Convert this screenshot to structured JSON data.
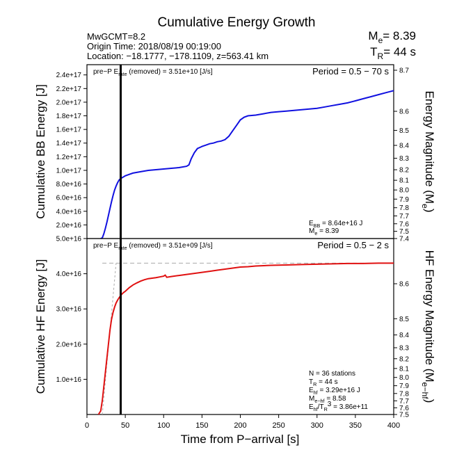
{
  "title": "Cumulative Energy Growth",
  "header": {
    "left_lines": [
      "MwGCMT=8.2",
      "Origin Time: 2018/08/19 00:19:00",
      "Location: −18.1777, −178.1109, z=563.41 km"
    ],
    "me_label": "M",
    "me_sub": "e",
    "me_value": "= 8.39",
    "tr_label": "T",
    "tr_sub": "R",
    "tr_value": "= 44 s"
  },
  "xlabel": "Time from P−arrival [s]",
  "x_ticks": [
    "0",
    "50",
    "100",
    "150",
    "200",
    "250",
    "300",
    "350",
    "400"
  ],
  "vline_x": 44,
  "colors": {
    "bb": "#1010e0",
    "hf": "#e01010",
    "ref": "#aaaaaa",
    "vline": "#000000"
  },
  "chart_data": [
    {
      "type": "line",
      "panel": "top",
      "xlim": [
        0,
        400
      ],
      "ylim": [
        0,
        2.55e+17
      ],
      "ylabel": "Cumulative BB Energy [J]",
      "y2label_main": "Energy Magnitude (M",
      "y2label_sub": "e",
      "y2label_end": ")",
      "y_ticks": [
        {
          "v": 2e+16,
          "label": "2.0e+16"
        },
        {
          "v": 4e+16,
          "label": "4.0e+16"
        },
        {
          "v": 6e+16,
          "label": "6.0e+16"
        },
        {
          "v": 8e+16,
          "label": "8.0e+16"
        },
        {
          "v": 1e+17,
          "label": "1.0e+17"
        },
        {
          "v": 1.2e+17,
          "label": "1.2e+17"
        },
        {
          "v": 1.4e+17,
          "label": "1.4e+17"
        },
        {
          "v": 1.6e+17,
          "label": "1.6e+17"
        },
        {
          "v": 1.8e+17,
          "label": "1.8e+17"
        },
        {
          "v": 2e+17,
          "label": "2.0e+17"
        },
        {
          "v": 2.2e+17,
          "label": "2.2e+17"
        },
        {
          "v": 2.4e+17,
          "label": "2.4e+17"
        }
      ],
      "right_ticks": [
        "8.7",
        "8.6",
        "8.5",
        "8.4",
        "8.3",
        "8.2",
        "8.1",
        "8.0",
        "7.9",
        "7.8",
        "7.7",
        "7.6",
        "7.5",
        "7.4"
      ],
      "annot_left": "pre−P E",
      "annot_left_sub": "rate",
      "annot_left_rest": " (removed) = 3.51e+10 [J/s]",
      "period": "Period = 0.5 − 70 s",
      "stats": [
        {
          "main": "E",
          "sub": "BB",
          "rest": " = 8.64e+16 J"
        },
        {
          "main": "M",
          "sub": "e",
          "rest": " = 8.39"
        }
      ],
      "series": [
        {
          "x": [
            18,
            20,
            22,
            24,
            26,
            28,
            30,
            32,
            34,
            36,
            38,
            40,
            42,
            44,
            47,
            50,
            55,
            60,
            70,
            80,
            90,
            100,
            110,
            120,
            130,
            133,
            136,
            140,
            144,
            148,
            150,
            155,
            160,
            165,
            170,
            175,
            180,
            185,
            190,
            195,
            200,
            205,
            210,
            220,
            230,
            240,
            250,
            260,
            270,
            280,
            290,
            300,
            310,
            320,
            330,
            340,
            350,
            360,
            370,
            380,
            390,
            400
          ],
          "y": [
            0,
            1000000000000000.0,
            7000000000000000.0,
            1.5e+16,
            2.4e+16,
            3.4e+16,
            4.4e+16,
            5.4e+16,
            6.3e+16,
            7.1e+16,
            7.7e+16,
            8.2e+16,
            8.6e+16,
            8.8e+16,
            9e+16,
            9.2e+16,
            9.4e+16,
            9.6e+16,
            9.8e+16,
            1e+17,
            1.01e+17,
            1.02e+17,
            1.03e+17,
            1.04e+17,
            1.06e+17,
            1.08e+17,
            1.17e+17,
            1.26e+17,
            1.32e+17,
            1.34e+17,
            1.35e+17,
            1.37e+17,
            1.39e+17,
            1.4e+17,
            1.42e+17,
            1.43e+17,
            1.45e+17,
            1.5e+17,
            1.58e+17,
            1.66e+17,
            1.74e+17,
            1.78e+17,
            1.8e+17,
            1.81e+17,
            1.83e+17,
            1.85e+17,
            1.86e+17,
            1.87e+17,
            1.88e+17,
            1.89e+17,
            1.9e+17,
            1.91e+17,
            1.93e+17,
            1.95e+17,
            1.97e+17,
            1.99e+17,
            2.02e+17,
            2.05e+17,
            2.08e+17,
            2.11e+17,
            2.14e+17,
            2.17e+17
          ]
        }
      ]
    },
    {
      "type": "line",
      "panel": "bottom",
      "xlim": [
        0,
        400
      ],
      "ylim": [
        0,
        5e+16
      ],
      "ylabel": "Cumulative HF Energy [J]",
      "y2label_main": "HF Energy Magnitude (M",
      "y2label_sub": "e−hf",
      "y2label_end": ")",
      "y_ticks": [
        {
          "v": 1e+16,
          "label": "1.0e+16"
        },
        {
          "v": 2e+16,
          "label": "2.0e+16"
        },
        {
          "v": 3e+16,
          "label": "3.0e+16"
        },
        {
          "v": 4e+16,
          "label": "4.0e+16"
        },
        {
          "v": 5e+16,
          "label": "5.0e+16"
        }
      ],
      "right_ticks": [
        "8.6",
        "8.5",
        "8.4",
        "8.3",
        "8.2",
        "8.1",
        "8.0",
        "7.9",
        "7.8",
        "7.7",
        "7.6",
        "7.5"
      ],
      "annot_left": "pre−P E",
      "annot_left_sub": "rate",
      "annot_left_rest": " (removed) = 3.51e+09 [J/s]",
      "period": "Period = 0.5 − 2 s",
      "stats": [
        {
          "main": "N = 36 stations",
          "sub": "",
          "rest": ""
        },
        {
          "main": "T",
          "sub": "R",
          "rest": " = 44  s"
        },
        {
          "main": "E",
          "sub": "hf",
          "rest": " = 3.29e+16 J"
        },
        {
          "main": "M",
          "sub": "e−hf",
          "rest": " = 8.58"
        },
        {
          "main": "E",
          "sub": "hf",
          "rest": "/T",
          "sub2": "R",
          "sup": "3",
          "rest2": " =  3.86e+11"
        }
      ],
      "ref_level": 4.3e+16,
      "series": [
        {
          "x": [
            15,
            18,
            20,
            22,
            24,
            26,
            28,
            30,
            32,
            34,
            36,
            38,
            40,
            42,
            44,
            46,
            48,
            50,
            55,
            60,
            65,
            70,
            75,
            80,
            90,
            95,
            100,
            102,
            104,
            110,
            120,
            130,
            140,
            150,
            160,
            170,
            180,
            190,
            200,
            210,
            220,
            240,
            260,
            280,
            300,
            320,
            340,
            360,
            380,
            400
          ],
          "y": [
            0,
            1000000000000000.0,
            4000000000000000.0,
            8000000000000000.0,
            1.2e+16,
            1.6e+16,
            2e+16,
            2.4e+16,
            2.7e+16,
            2.9e+16,
            3.05e+16,
            3.17e+16,
            3.25e+16,
            3.32e+16,
            3.38e+16,
            3.43e+16,
            3.47e+16,
            3.5e+16,
            3.6e+16,
            3.68e+16,
            3.74e+16,
            3.79e+16,
            3.83e+16,
            3.86e+16,
            3.89e+16,
            3.91e+16,
            3.93e+16,
            3.96e+16,
            3.9e+16,
            3.92e+16,
            3.95e+16,
            3.98e+16,
            4.01e+16,
            4.04e+16,
            4.07e+16,
            4.1e+16,
            4.13e+16,
            4.16e+16,
            4.19e+16,
            4.2e+16,
            4.22e+16,
            4.24e+16,
            4.25e+16,
            4.26e+16,
            4.27e+16,
            4.28e+16,
            4.29e+16,
            4.29e+16,
            4.3e+16,
            4.3e+16
          ]
        }
      ]
    }
  ]
}
